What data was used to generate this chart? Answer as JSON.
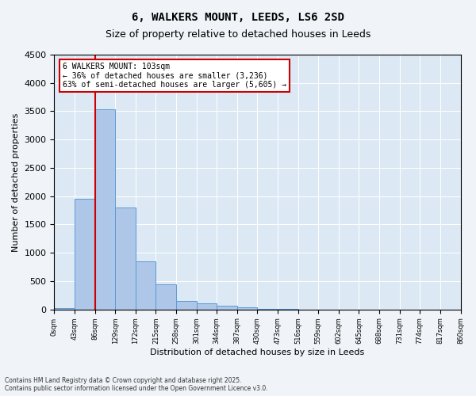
{
  "title_line1": "6, WALKERS MOUNT, LEEDS, LS6 2SD",
  "title_line2": "Size of property relative to detached houses in Leeds",
  "xlabel": "Distribution of detached houses by size in Leeds",
  "ylabel": "Number of detached properties",
  "bar_values": [
    30,
    1950,
    3530,
    1800,
    850,
    440,
    155,
    110,
    65,
    40,
    15,
    5,
    0,
    0,
    0,
    0,
    0,
    0,
    0,
    0
  ],
  "bin_labels": [
    "0sqm",
    "43sqm",
    "86sqm",
    "129sqm",
    "172sqm",
    "215sqm",
    "258sqm",
    "301sqm",
    "344sqm",
    "387sqm",
    "430sqm",
    "473sqm",
    "516sqm",
    "559sqm",
    "602sqm",
    "645sqm",
    "688sqm",
    "731sqm",
    "774sqm",
    "817sqm",
    "860sqm"
  ],
  "bar_color": "#aec6e8",
  "bar_edge_color": "#5b9bd5",
  "vline_color": "#cc0000",
  "annotation_title": "6 WALKERS MOUNT: 103sqm",
  "annotation_line2": "← 36% of detached houses are smaller (3,236)",
  "annotation_line3": "63% of semi-detached houses are larger (5,605) →",
  "annotation_box_color": "#cc0000",
  "ylim": [
    0,
    4500
  ],
  "yticks": [
    0,
    500,
    1000,
    1500,
    2000,
    2500,
    3000,
    3500,
    4000,
    4500
  ],
  "footer_line1": "Contains HM Land Registry data © Crown copyright and database right 2025.",
  "footer_line2": "Contains public sector information licensed under the Open Government Licence v3.0.",
  "plot_bg_color": "#dce9f5",
  "fig_bg_color": "#f0f4f8"
}
